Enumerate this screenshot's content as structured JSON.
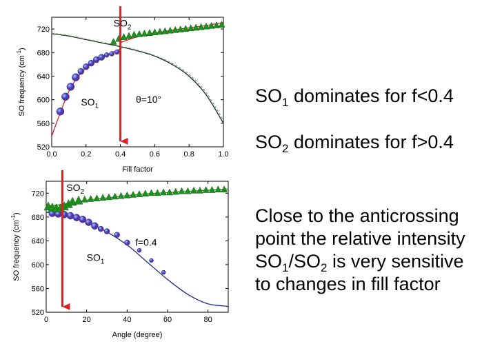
{
  "chart_data": [
    {
      "type": "scatter",
      "xlabel": "Fill factor",
      "ylabel": "SO frequency (cm",
      "ylabel_sup": "-1",
      "ylabel_close": ")",
      "xlim": [
        0.0,
        1.0
      ],
      "ylim": [
        520,
        740
      ],
      "xticks": [
        "0.0",
        "0.2",
        "0.4",
        "0.6",
        "0.8",
        "1.0"
      ],
      "xtick_values": [
        0.0,
        0.2,
        0.4,
        0.6,
        0.8,
        1.0
      ],
      "yticks": [
        "520",
        "560",
        "600",
        "640",
        "680",
        "720"
      ],
      "ytick_values": [
        520,
        560,
        600,
        640,
        680,
        720
      ],
      "annotations": [
        {
          "text": "SO",
          "sub": "2",
          "x": 0.36,
          "y": 724
        },
        {
          "text": "SO",
          "sub": "1",
          "x": 0.17,
          "y": 590
        },
        {
          "text": "θ=10°",
          "x": 0.49,
          "y": 595
        }
      ],
      "marker_line_x": 0.4,
      "series": [
        {
          "marker": "sphere",
          "color": "#3a3fbf",
          "x": [
            0.05,
            0.08,
            0.11,
            0.14,
            0.17,
            0.2,
            0.23,
            0.26,
            0.29,
            0.32,
            0.35,
            0.38
          ],
          "y": [
            580,
            605,
            622,
            638,
            648,
            656,
            662,
            668,
            672,
            676,
            678,
            681
          ]
        },
        {
          "marker": "triangle",
          "color": "#1f8f1f",
          "x": [
            0.36,
            0.39,
            0.42,
            0.45,
            0.48,
            0.51,
            0.54,
            0.57,
            0.6,
            0.63,
            0.66,
            0.69,
            0.72,
            0.75,
            0.78,
            0.81,
            0.84,
            0.87,
            0.9,
            0.93,
            0.96,
            0.99
          ],
          "y": [
            698,
            703,
            706,
            708,
            710,
            711,
            712,
            713,
            714,
            715,
            716,
            717,
            718,
            719,
            720,
            721,
            722,
            723,
            724,
            725,
            726,
            727
          ]
        },
        {
          "line": "solid",
          "color": "#d42020",
          "x": [
            0.0,
            0.05,
            0.1,
            0.15,
            0.2,
            0.25,
            0.3,
            0.35,
            0.4
          ],
          "y": [
            538,
            578,
            614,
            638,
            654,
            665,
            673,
            680,
            686
          ]
        },
        {
          "line": "solid",
          "color": "#222222",
          "x": [
            0.0,
            0.1,
            0.2,
            0.3,
            0.4,
            0.5,
            0.6,
            0.7,
            0.8,
            0.9,
            1.0
          ],
          "y": [
            712,
            708,
            702,
            696,
            690,
            683,
            674,
            660,
            640,
            608,
            560
          ]
        },
        {
          "line": "dashed",
          "color": "#5fae5f",
          "x": [
            0.0,
            0.1,
            0.2,
            0.3,
            0.4,
            0.5,
            0.6,
            0.7,
            0.8,
            0.9,
            1.0
          ],
          "y": [
            713,
            709,
            703,
            697,
            691,
            684,
            675,
            662,
            643,
            612,
            565
          ]
        },
        {
          "line": "solid",
          "color": "#d42020",
          "x": [
            0.4,
            0.5,
            0.6,
            0.7,
            0.8,
            0.9,
            1.0
          ],
          "y": [
            697,
            707,
            713,
            718,
            722,
            726,
            731
          ]
        }
      ]
    },
    {
      "type": "scatter",
      "xlabel": "Angle (degree)",
      "ylabel": "SO frequency (cm",
      "ylabel_sup": "-1",
      "ylabel_close": ")",
      "xlim": [
        0,
        90
      ],
      "ylim": [
        520,
        740
      ],
      "xticks": [
        "0",
        "20",
        "40",
        "60",
        "80"
      ],
      "xtick_values": [
        0,
        20,
        40,
        60,
        80
      ],
      "yticks": [
        "520",
        "560",
        "600",
        "640",
        "680",
        "720"
      ],
      "ytick_values": [
        520,
        560,
        600,
        640,
        680,
        720
      ],
      "annotations": [
        {
          "text": "SO",
          "sub": "2",
          "x": 10,
          "y": 724
        },
        {
          "text": "SO",
          "sub": "1",
          "x": 20,
          "y": 606
        },
        {
          "text": "f=0.4",
          "x": 44,
          "y": 632
        }
      ],
      "marker_line_x": 8,
      "series": [
        {
          "marker": "sphere",
          "color": "#3a3fbf",
          "x": [
            3,
            6,
            9,
            12,
            15,
            18,
            21,
            24,
            27,
            30,
            35,
            40,
            46,
            52,
            58
          ],
          "y": [
            686,
            685,
            684,
            682,
            679,
            676,
            671,
            665,
            660,
            656,
            650,
            637,
            624,
            607,
            587
          ]
        },
        {
          "marker": "triangle",
          "color": "#1f8f1f",
          "x": [
            1,
            3,
            5,
            7,
            9,
            11,
            13,
            16,
            19,
            22,
            25,
            28,
            31,
            34,
            37,
            40,
            43,
            46,
            49,
            52,
            55,
            58,
            61,
            64,
            67,
            70,
            73,
            76,
            79,
            82,
            85,
            88
          ],
          "y": [
            697,
            695,
            694,
            694,
            697,
            701,
            705,
            707,
            709,
            710,
            711,
            712,
            713,
            714,
            715,
            716,
            717,
            718,
            719,
            720,
            720,
            721,
            721,
            722,
            723,
            723,
            724,
            724,
            725,
            725,
            726,
            726
          ]
        },
        {
          "line": "solid",
          "color": "#1c2a8a",
          "x": [
            0,
            10,
            20,
            30,
            40,
            50,
            60,
            70,
            80,
            90
          ],
          "y": [
            688,
            684,
            673,
            655,
            633,
            604,
            575,
            550,
            534,
            530
          ]
        },
        {
          "line": "solid",
          "color": "#1f8f1f",
          "x": [
            0,
            10,
            20,
            30,
            40,
            50,
            60,
            70,
            80,
            90
          ],
          "y": [
            698,
            702,
            708,
            712,
            716,
            719,
            721,
            723,
            725,
            727
          ]
        }
      ]
    }
  ],
  "notes": {
    "n1_a": "SO",
    "n1_sub": "1",
    "n1_b": " dominates for f<0.4",
    "n2_a": "SO",
    "n2_sub": "2",
    "n2_b": " dominates for f>0.4",
    "n3_l1": "Close to the anticrossing",
    "n3_l2": "point  the relative intensity",
    "n3_l3a": "SO",
    "n3_l3s1": "1",
    "n3_l3b": "/SO",
    "n3_l3s2": "2",
    "n3_l3c": " is very sensitive",
    "n3_l4": "to changes in fill factor"
  }
}
